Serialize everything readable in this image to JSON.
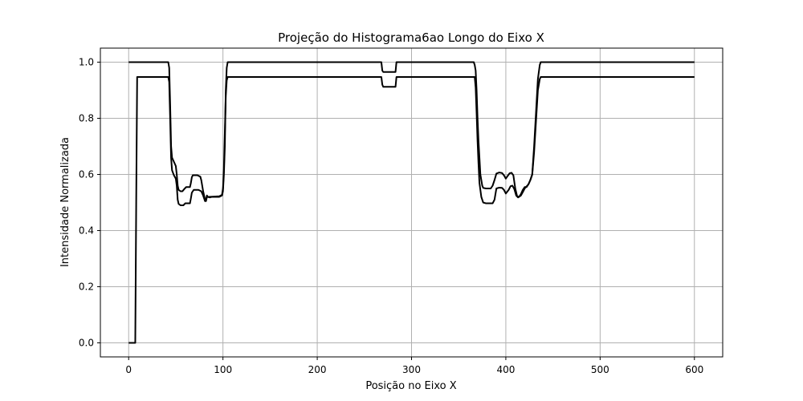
{
  "chart_data": {
    "type": "line",
    "title": "Projeção do Histograma6ao Longo do Eixo X",
    "xlabel": "Posição no Eixo X",
    "ylabel": "Intensidade Normalizada",
    "xlim": [
      -30,
      630
    ],
    "ylim": [
      -0.05,
      1.05
    ],
    "xticks": [
      0,
      100,
      200,
      300,
      400,
      500,
      600
    ],
    "yticks": [
      0.0,
      0.2,
      0.4,
      0.6,
      0.8,
      1.0
    ],
    "xtick_labels": [
      "0",
      "100",
      "200",
      "300",
      "400",
      "500",
      "600"
    ],
    "ytick_labels": [
      "0.0",
      "0.2",
      "0.4",
      "0.6",
      "0.8",
      "1.0"
    ],
    "grid": true,
    "series": [
      {
        "color": "#000000",
        "points": [
          [
            0,
            1.0
          ],
          [
            42,
            1.0
          ],
          [
            43,
            0.98
          ],
          [
            44,
            0.85
          ],
          [
            45,
            0.7
          ],
          [
            46,
            0.66
          ],
          [
            48,
            0.645
          ],
          [
            50,
            0.63
          ],
          [
            51,
            0.6
          ],
          [
            52,
            0.56
          ],
          [
            53,
            0.545
          ],
          [
            55,
            0.54
          ],
          [
            57,
            0.54
          ],
          [
            59,
            0.548
          ],
          [
            61,
            0.555
          ],
          [
            65,
            0.555
          ],
          [
            66,
            0.57
          ],
          [
            67,
            0.59
          ],
          [
            68,
            0.597
          ],
          [
            73,
            0.597
          ],
          [
            76,
            0.592
          ],
          [
            77,
            0.58
          ],
          [
            79,
            0.54
          ],
          [
            81,
            0.51
          ],
          [
            82,
            0.51
          ],
          [
            83,
            0.525
          ],
          [
            84,
            0.52
          ],
          [
            86,
            0.518
          ],
          [
            88,
            0.52
          ],
          [
            96,
            0.52
          ],
          [
            99,
            0.525
          ],
          [
            100,
            0.54
          ],
          [
            101,
            0.6
          ],
          [
            102,
            0.7
          ],
          [
            103,
            0.9
          ],
          [
            104,
            0.98
          ],
          [
            105,
            1.0
          ],
          [
            106,
            1.0
          ],
          [
            268,
            1.0
          ],
          [
            269,
            0.97
          ],
          [
            270,
            0.965
          ],
          [
            283,
            0.965
          ],
          [
            284,
            1.0
          ],
          [
            366,
            1.0
          ],
          [
            367,
            0.99
          ],
          [
            368,
            0.97
          ],
          [
            369,
            0.9
          ],
          [
            370,
            0.8
          ],
          [
            371,
            0.72
          ],
          [
            372,
            0.66
          ],
          [
            373,
            0.6
          ],
          [
            375,
            0.56
          ],
          [
            376,
            0.552
          ],
          [
            379,
            0.55
          ],
          [
            384,
            0.55
          ],
          [
            386,
            0.56
          ],
          [
            388,
            0.58
          ],
          [
            390,
            0.603
          ],
          [
            393,
            0.607
          ],
          [
            396,
            0.605
          ],
          [
            398,
            0.597
          ],
          [
            400,
            0.585
          ],
          [
            402,
            0.595
          ],
          [
            404,
            0.604
          ],
          [
            406,
            0.606
          ],
          [
            408,
            0.597
          ],
          [
            410,
            0.55
          ],
          [
            412,
            0.522
          ],
          [
            414,
            0.52
          ],
          [
            416,
            0.53
          ],
          [
            418,
            0.545
          ],
          [
            420,
            0.555
          ],
          [
            422,
            0.555
          ],
          [
            424,
            0.565
          ],
          [
            426,
            0.58
          ],
          [
            428,
            0.6
          ],
          [
            430,
            0.7
          ],
          [
            432,
            0.82
          ],
          [
            434,
            0.94
          ],
          [
            436,
            0.99
          ],
          [
            437,
            1.0
          ],
          [
            600,
            1.0
          ]
        ]
      },
      {
        "color": "#000000",
        "points": [
          [
            0,
            0.0
          ],
          [
            7,
            0.0
          ],
          [
            8,
            0.5
          ],
          [
            9,
            0.947
          ],
          [
            42,
            0.947
          ],
          [
            43,
            0.93
          ],
          [
            44,
            0.8
          ],
          [
            45,
            0.66
          ],
          [
            46,
            0.615
          ],
          [
            48,
            0.597
          ],
          [
            50,
            0.585
          ],
          [
            51,
            0.56
          ],
          [
            52,
            0.51
          ],
          [
            53,
            0.495
          ],
          [
            55,
            0.49
          ],
          [
            58,
            0.49
          ],
          [
            60,
            0.497
          ],
          [
            65,
            0.497
          ],
          [
            66,
            0.515
          ],
          [
            67,
            0.535
          ],
          [
            69,
            0.545
          ],
          [
            74,
            0.545
          ],
          [
            77,
            0.54
          ],
          [
            79,
            0.525
          ],
          [
            81,
            0.505
          ],
          [
            82,
            0.505
          ],
          [
            83,
            0.52
          ],
          [
            85,
            0.52
          ],
          [
            96,
            0.522
          ],
          [
            99,
            0.527
          ],
          [
            100,
            0.55
          ],
          [
            101,
            0.62
          ],
          [
            102,
            0.75
          ],
          [
            103,
            0.88
          ],
          [
            104,
            0.935
          ],
          [
            105,
            0.947
          ],
          [
            268,
            0.947
          ],
          [
            269,
            0.92
          ],
          [
            270,
            0.912
          ],
          [
            283,
            0.912
          ],
          [
            284,
            0.947
          ],
          [
            367,
            0.947
          ],
          [
            368,
            0.91
          ],
          [
            369,
            0.82
          ],
          [
            370,
            0.72
          ],
          [
            371,
            0.64
          ],
          [
            372,
            0.57
          ],
          [
            374,
            0.52
          ],
          [
            376,
            0.5
          ],
          [
            379,
            0.497
          ],
          [
            386,
            0.497
          ],
          [
            388,
            0.51
          ],
          [
            390,
            0.55
          ],
          [
            393,
            0.553
          ],
          [
            396,
            0.552
          ],
          [
            398,
            0.545
          ],
          [
            400,
            0.532
          ],
          [
            403,
            0.545
          ],
          [
            405,
            0.558
          ],
          [
            407,
            0.56
          ],
          [
            409,
            0.548
          ],
          [
            411,
            0.525
          ],
          [
            413,
            0.518
          ],
          [
            416,
            0.525
          ],
          [
            418,
            0.537
          ],
          [
            420,
            0.55
          ],
          [
            424,
            0.565
          ],
          [
            426,
            0.58
          ],
          [
            428,
            0.6
          ],
          [
            430,
            0.68
          ],
          [
            432,
            0.79
          ],
          [
            434,
            0.9
          ],
          [
            436,
            0.94
          ],
          [
            437,
            0.947
          ],
          [
            600,
            0.947
          ]
        ]
      }
    ]
  }
}
